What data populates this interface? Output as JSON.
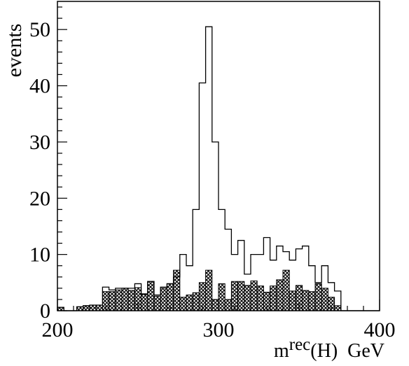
{
  "chart_data": {
    "type": "histogram",
    "ylabel": "events",
    "xlabel": {
      "base": "m",
      "sup": "rec",
      "rest": "(H)  GeV"
    },
    "xlim": [
      200,
      400
    ],
    "ylim": [
      0,
      55
    ],
    "x_ticks": [
      200,
      300,
      400
    ],
    "y_ticks": [
      0,
      10,
      20,
      30,
      40,
      50
    ],
    "bin_width": 4,
    "bin_starts": [
      200,
      204,
      208,
      212,
      216,
      220,
      224,
      228,
      232,
      236,
      240,
      244,
      248,
      252,
      256,
      260,
      264,
      268,
      272,
      276,
      280,
      284,
      288,
      292,
      296,
      300,
      304,
      308,
      312,
      316,
      320,
      324,
      328,
      332,
      336,
      340,
      344,
      348,
      352,
      356,
      360,
      364,
      368,
      372,
      376,
      380,
      384,
      388,
      392,
      396
    ],
    "series": [
      {
        "style": "outline",
        "values": [
          0.6,
          0,
          0,
          0.7,
          0.9,
          1,
          1,
          4.2,
          3.7,
          4.0,
          4.0,
          4.0,
          4.8,
          3.0,
          5.2,
          2.8,
          4.2,
          4.8,
          6.0,
          10,
          8,
          18,
          40.5,
          50.5,
          30,
          18,
          14.5,
          10,
          12.5,
          6.5,
          10,
          10,
          13,
          9,
          11.5,
          10.5,
          9,
          11,
          11.5,
          8,
          5,
          8,
          5,
          3.5,
          0,
          0,
          0,
          0,
          0,
          0
        ]
      },
      {
        "style": "crosshatch",
        "values": [
          0.6,
          0,
          0,
          0.7,
          0.9,
          1,
          1,
          3.4,
          3.4,
          3.7,
          4.0,
          3.6,
          4.1,
          2.9,
          5.2,
          2.6,
          4.0,
          4.8,
          7.2,
          2.4,
          2.8,
          3.2,
          5.0,
          7.2,
          2.0,
          4.8,
          2.0,
          5.2,
          5.2,
          4.5,
          5.3,
          4.4,
          3.3,
          4.4,
          5.5,
          7.2,
          3.5,
          4.5,
          3.6,
          3.4,
          4.8,
          4.0,
          2.4,
          0.9,
          0,
          0,
          0,
          0,
          0,
          0
        ]
      }
    ]
  }
}
